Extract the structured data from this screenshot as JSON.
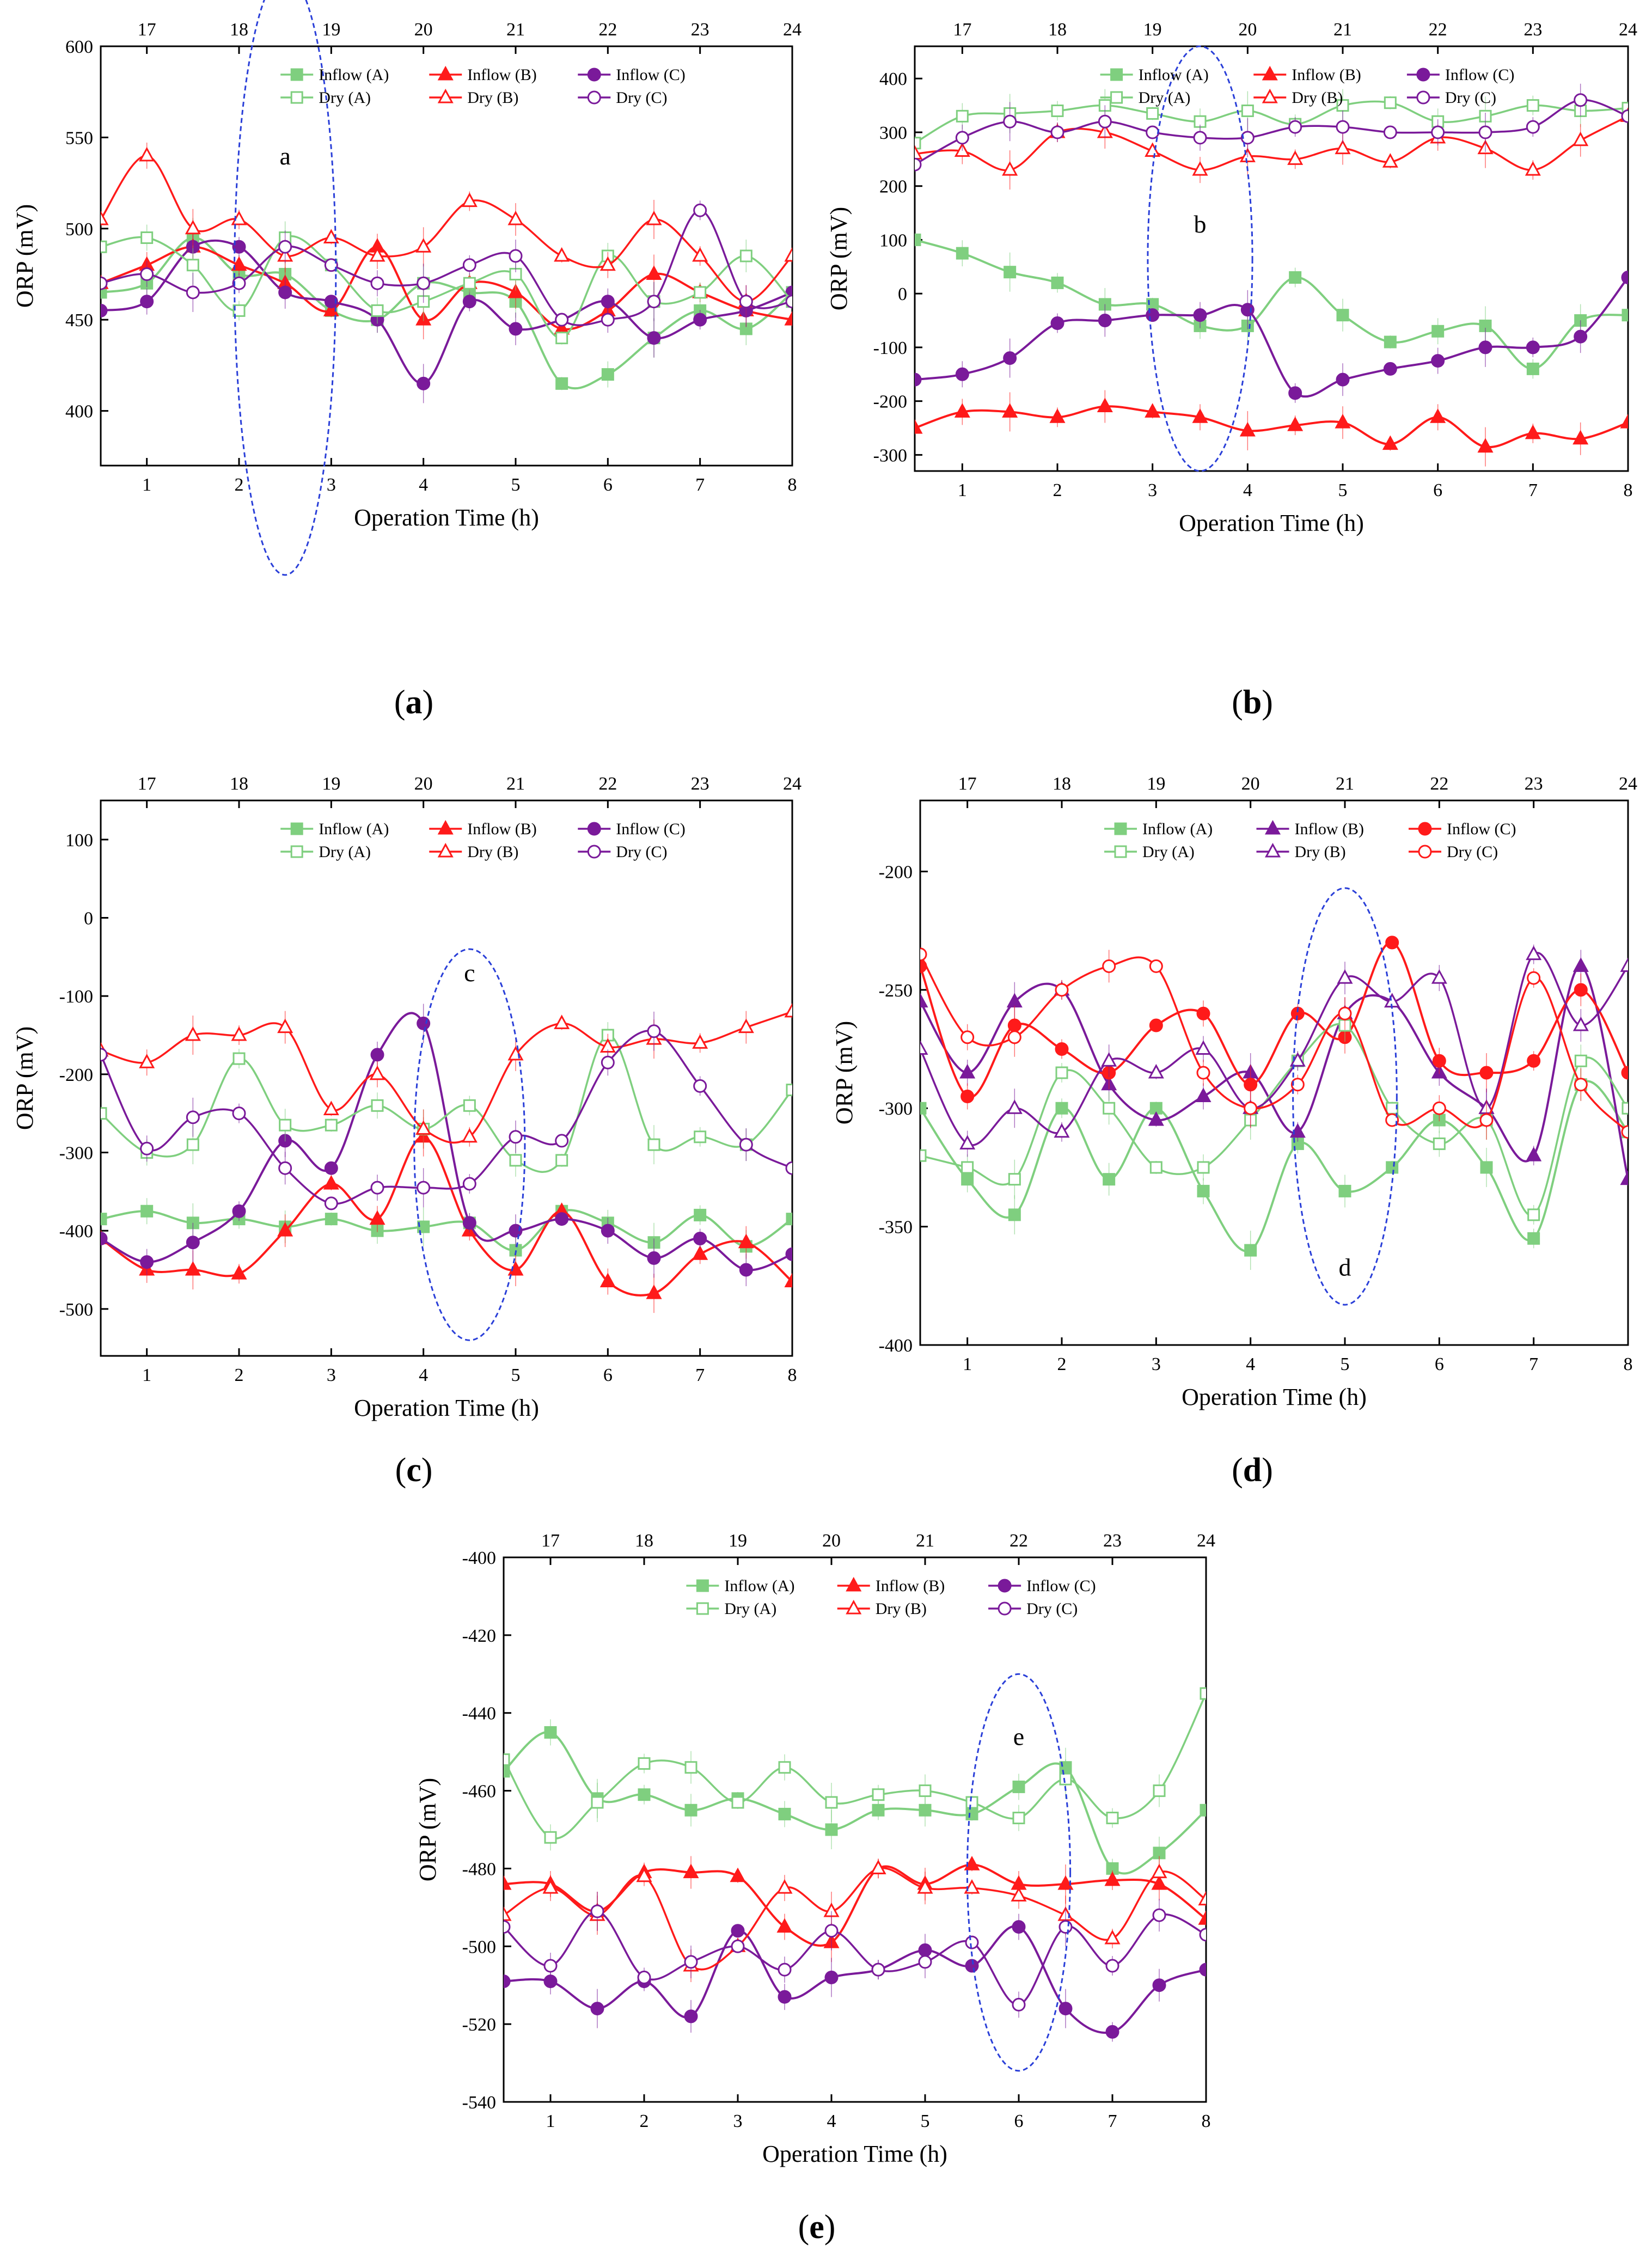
{
  "figure": {
    "axis_x_label": "Operation Time (h)",
    "axis_y_label": "ORP (mV)"
  },
  "chart_data": [
    {
      "id": "a",
      "type": "line",
      "caption": "a",
      "annotation": "a",
      "xlim": [
        0.5,
        8
      ],
      "ylim": [
        370,
        600
      ],
      "x_ticks": [
        1,
        2,
        3,
        4,
        5,
        6,
        7,
        8
      ],
      "y_ticks": [
        400,
        450,
        500,
        550,
        600
      ],
      "top_ticks": [
        17,
        18,
        19,
        20,
        21,
        22,
        23,
        24
      ],
      "xlabel": "Operation Time (h)",
      "ylabel": "ORP (mV)",
      "legend": [
        "Inflow (A)",
        "Inflow (B)",
        "Inflow (C)",
        "Dry (A)",
        "Dry (B)",
        "Dry (C)"
      ],
      "x": [
        0.5,
        1,
        1.5,
        2,
        2.5,
        3,
        3.5,
        4,
        4.5,
        5,
        5.5,
        6,
        6.5,
        7,
        7.5,
        8
      ],
      "series": [
        {
          "name": "Inflow (A)",
          "color": "#7fcf7f",
          "marker": "square",
          "filled": true,
          "values": [
            465,
            470,
            495,
            475,
            475,
            455,
            450,
            470,
            465,
            460,
            415,
            420,
            440,
            455,
            445,
            465
          ]
        },
        {
          "name": "Inflow (B)",
          "color": "#ff1a1a",
          "marker": "triangle",
          "filled": true,
          "values": [
            470,
            480,
            490,
            480,
            470,
            455,
            490,
            450,
            470,
            465,
            445,
            455,
            475,
            465,
            455,
            450
          ]
        },
        {
          "name": "Inflow (C)",
          "color": "#7a1a9a",
          "marker": "circle",
          "filled": true,
          "values": [
            455,
            460,
            490,
            490,
            465,
            460,
            450,
            415,
            460,
            445,
            450,
            460,
            440,
            450,
            455,
            465
          ]
        },
        {
          "name": "Dry (A)",
          "color": "#7fcf7f",
          "marker": "square",
          "filled": false,
          "values": [
            490,
            495,
            480,
            455,
            495,
            480,
            455,
            460,
            470,
            475,
            440,
            485,
            460,
            465,
            485,
            460
          ]
        },
        {
          "name": "Dry (B)",
          "color": "#ff1a1a",
          "marker": "triangle",
          "filled": false,
          "values": [
            505,
            540,
            500,
            505,
            485,
            495,
            485,
            490,
            515,
            505,
            485,
            480,
            505,
            485,
            460,
            485
          ]
        },
        {
          "name": "Dry (C)",
          "color": "#7a1a9a",
          "marker": "circle",
          "filled": false,
          "values": [
            470,
            475,
            465,
            470,
            490,
            480,
            470,
            470,
            480,
            485,
            450,
            450,
            460,
            510,
            460,
            460
          ]
        }
      ]
    },
    {
      "id": "b",
      "type": "line",
      "caption": "b",
      "annotation": "b",
      "xlim": [
        0.5,
        8
      ],
      "ylim": [
        -330,
        460
      ],
      "x_ticks": [
        1,
        2,
        3,
        4,
        5,
        6,
        7,
        8
      ],
      "y_ticks": [
        -300,
        -200,
        -100,
        0,
        100,
        200,
        300,
        400
      ],
      "top_ticks": [
        17,
        18,
        19,
        20,
        21,
        22,
        23,
        24
      ],
      "xlabel": "Operation Time (h)",
      "ylabel": "ORP (mV)",
      "legend": [
        "Inflow (A)",
        "Inflow (B)",
        "Inflow (C)",
        "Dry (A)",
        "Dry (B)",
        "Dry (C)"
      ],
      "x": [
        0.5,
        1,
        1.5,
        2,
        2.5,
        3,
        3.5,
        4,
        4.5,
        5,
        5.5,
        6,
        6.5,
        7,
        7.5,
        8
      ],
      "series": [
        {
          "name": "Inflow (A)",
          "color": "#7fcf7f",
          "marker": "square",
          "filled": true,
          "values": [
            100,
            75,
            40,
            20,
            -20,
            -20,
            -60,
            -60,
            30,
            -40,
            -90,
            -70,
            -60,
            -140,
            -50,
            -40
          ]
        },
        {
          "name": "Inflow (B)",
          "color": "#ff1a1a",
          "marker": "triangle",
          "filled": true,
          "values": [
            -250,
            -220,
            -220,
            -230,
            -210,
            -220,
            -230,
            -255,
            -245,
            -240,
            -280,
            -230,
            -285,
            -260,
            -270,
            -240
          ]
        },
        {
          "name": "Inflow (C)",
          "color": "#7a1a9a",
          "marker": "circle",
          "filled": true,
          "values": [
            -160,
            -150,
            -120,
            -55,
            -50,
            -40,
            -40,
            -30,
            -185,
            -160,
            -140,
            -125,
            -100,
            -100,
            -80,
            30
          ]
        },
        {
          "name": "Dry (A)",
          "color": "#7fcf7f",
          "marker": "square",
          "filled": false,
          "values": [
            280,
            330,
            335,
            340,
            350,
            335,
            320,
            340,
            315,
            350,
            355,
            320,
            330,
            350,
            340,
            345
          ]
        },
        {
          "name": "Dry (B)",
          "color": "#ff1a1a",
          "marker": "triangle",
          "filled": false,
          "values": [
            260,
            265,
            230,
            300,
            300,
            265,
            230,
            255,
            250,
            270,
            245,
            290,
            270,
            230,
            285,
            330
          ]
        },
        {
          "name": "Dry (C)",
          "color": "#7a1a9a",
          "marker": "circle",
          "filled": false,
          "values": [
            240,
            290,
            320,
            300,
            320,
            300,
            290,
            290,
            310,
            310,
            300,
            300,
            300,
            310,
            360,
            330
          ]
        }
      ]
    },
    {
      "id": "c",
      "type": "line",
      "caption": "c",
      "annotation": "c",
      "xlim": [
        0.5,
        8
      ],
      "ylim": [
        -560,
        150
      ],
      "x_ticks": [
        1,
        2,
        3,
        4,
        5,
        6,
        7,
        8
      ],
      "y_ticks": [
        -500,
        -400,
        -300,
        -200,
        -100,
        0,
        100
      ],
      "top_ticks": [
        17,
        18,
        19,
        20,
        21,
        22,
        23,
        24
      ],
      "xlabel": "Operation Time (h)",
      "ylabel": "ORP (mV)",
      "legend": [
        "Inflow (A)",
        "Inflow (B)",
        "Inflow (C)",
        "Dry (A)",
        "Dry (B)",
        "Dry (C)"
      ],
      "x": [
        0.5,
        1,
        1.5,
        2,
        2.5,
        3,
        3.5,
        4,
        4.5,
        5,
        5.5,
        6,
        6.5,
        7,
        7.5,
        8
      ],
      "series": [
        {
          "name": "Inflow (A)",
          "color": "#7fcf7f",
          "marker": "square",
          "filled": true,
          "values": [
            -385,
            -375,
            -390,
            -385,
            -395,
            -385,
            -400,
            -395,
            -390,
            -425,
            -375,
            -390,
            -415,
            -380,
            -420,
            -385
          ]
        },
        {
          "name": "Inflow (B)",
          "color": "#ff1a1a",
          "marker": "triangle",
          "filled": true,
          "values": [
            -410,
            -450,
            -450,
            -455,
            -400,
            -340,
            -385,
            -280,
            -400,
            -450,
            -375,
            -465,
            -480,
            -430,
            -415,
            -465
          ]
        },
        {
          "name": "Inflow (C)",
          "color": "#7a1a9a",
          "marker": "circle",
          "filled": true,
          "values": [
            -410,
            -440,
            -415,
            -375,
            -285,
            -320,
            -175,
            -135,
            -390,
            -400,
            -385,
            -400,
            -435,
            -410,
            -450,
            -430
          ]
        },
        {
          "name": "Dry (A)",
          "color": "#7fcf7f",
          "marker": "square",
          "filled": false,
          "values": [
            -250,
            -300,
            -290,
            -180,
            -265,
            -265,
            -240,
            -270,
            -240,
            -310,
            -310,
            -150,
            -290,
            -280,
            -290,
            -220
          ]
        },
        {
          "name": "Dry (B)",
          "color": "#ff1a1a",
          "marker": "triangle",
          "filled": false,
          "values": [
            -170,
            -185,
            -150,
            -150,
            -140,
            -245,
            -200,
            -270,
            -280,
            -175,
            -135,
            -165,
            -155,
            -160,
            -140,
            -120
          ]
        },
        {
          "name": "Dry (C)",
          "color": "#7a1a9a",
          "marker": "circle",
          "filled": false,
          "values": [
            -175,
            -295,
            -255,
            -250,
            -320,
            -365,
            -345,
            -345,
            -340,
            -280,
            -285,
            -185,
            -145,
            -215,
            -290,
            -320
          ]
        }
      ]
    },
    {
      "id": "d",
      "type": "line",
      "caption": "d",
      "annotation": "d",
      "xlim": [
        0.5,
        8
      ],
      "ylim": [
        -400,
        -170
      ],
      "x_ticks": [
        1,
        2,
        3,
        4,
        5,
        6,
        7,
        8
      ],
      "y_ticks": [
        -400,
        -350,
        -300,
        -250,
        -200
      ],
      "top_ticks": [
        17,
        18,
        19,
        20,
        21,
        22,
        23,
        24
      ],
      "xlabel": "Operation Time (h)",
      "ylabel": "ORP (mV)",
      "legend": [
        "Inflow (A)",
        "Inflow (B)",
        "Inflow (C)",
        "Dry (A)",
        "Dry (B)",
        "Dry (C)"
      ],
      "x": [
        0.5,
        1,
        1.5,
        2,
        2.5,
        3,
        3.5,
        4,
        4.5,
        5,
        5.5,
        6,
        6.5,
        7,
        7.5,
        8
      ],
      "series": [
        {
          "name": "Inflow (A)",
          "color": "#7fcf7f",
          "marker": "square",
          "filled": true,
          "values": [
            -300,
            -330,
            -345,
            -300,
            -330,
            -300,
            -335,
            -360,
            -315,
            -335,
            -325,
            -305,
            -325,
            -355,
            -290,
            -310
          ]
        },
        {
          "name": "Inflow (B)",
          "color": "#7a1a9a",
          "marker": "triangle",
          "filled": true,
          "values": [
            -255,
            -285,
            -255,
            -250,
            -290,
            -305,
            -295,
            -285,
            -310,
            -260,
            -255,
            -285,
            -300,
            -320,
            -240,
            -330
          ]
        },
        {
          "name": "Inflow (C)",
          "color": "#ff1a1a",
          "marker": "circle",
          "filled": true,
          "values": [
            -240,
            -295,
            -265,
            -275,
            -285,
            -265,
            -260,
            -290,
            -260,
            -270,
            -230,
            -280,
            -285,
            -280,
            -250,
            -285
          ]
        },
        {
          "name": "Dry (A)",
          "color": "#7fcf7f",
          "marker": "square",
          "filled": false,
          "values": [
            -320,
            -325,
            -330,
            -285,
            -300,
            -325,
            -325,
            -305,
            -280,
            -265,
            -300,
            -315,
            -305,
            -345,
            -280,
            -300
          ]
        },
        {
          "name": "Dry (B)",
          "color": "#7a1a9a",
          "marker": "triangle",
          "filled": false,
          "values": [
            -275,
            -315,
            -300,
            -310,
            -280,
            -285,
            -275,
            -300,
            -280,
            -245,
            -255,
            -245,
            -300,
            -235,
            -265,
            -240
          ]
        },
        {
          "name": "Dry (C)",
          "color": "#ff1a1a",
          "marker": "circle",
          "filled": false,
          "values": [
            -235,
            -270,
            -270,
            -250,
            -240,
            -240,
            -285,
            -300,
            -290,
            -260,
            -305,
            -300,
            -305,
            -245,
            -290,
            -310
          ]
        }
      ]
    },
    {
      "id": "e",
      "type": "line",
      "caption": "e",
      "annotation": "e",
      "xlim": [
        0.5,
        8
      ],
      "ylim": [
        -540,
        -400
      ],
      "x_ticks": [
        1,
        2,
        3,
        4,
        5,
        6,
        7,
        8
      ],
      "y_ticks": [
        -540,
        -520,
        -500,
        -480,
        -460,
        -440,
        -420,
        -400
      ],
      "top_ticks": [
        17,
        18,
        19,
        20,
        21,
        22,
        23,
        24
      ],
      "xlabel": "Operation Time (h)",
      "ylabel": "ORP (mV)",
      "legend": [
        "Inflow (A)",
        "Inflow (B)",
        "Inflow (C)",
        "Dry (A)",
        "Dry (B)",
        "Dry (C)"
      ],
      "x": [
        0.5,
        1,
        1.5,
        2,
        2.5,
        3,
        3.5,
        4,
        4.5,
        5,
        5.5,
        6,
        6.5,
        7,
        7.5,
        8
      ],
      "series": [
        {
          "name": "Inflow (A)",
          "color": "#7fcf7f",
          "marker": "square",
          "filled": true,
          "values": [
            -455,
            -445,
            -462,
            -461,
            -465,
            -462,
            -466,
            -470,
            -465,
            -465,
            -466,
            -459,
            -454,
            -480,
            -476,
            -465
          ]
        },
        {
          "name": "Inflow (B)",
          "color": "#ff1a1a",
          "marker": "triangle",
          "filled": true,
          "values": [
            -484,
            -484,
            -491,
            -481,
            -481,
            -482,
            -495,
            -499,
            -480,
            -484,
            -479,
            -484,
            -484,
            -483,
            -484,
            -493
          ]
        },
        {
          "name": "Inflow (C)",
          "color": "#7a1a9a",
          "marker": "circle",
          "filled": true,
          "values": [
            -509,
            -509,
            -516,
            -509,
            -518,
            -496,
            -513,
            -508,
            -506,
            -501,
            -505,
            -495,
            -516,
            -522,
            -510,
            -506
          ]
        },
        {
          "name": "Dry (A)",
          "color": "#7fcf7f",
          "marker": "square",
          "filled": false,
          "values": [
            -452,
            -472,
            -463,
            -453,
            -454,
            -463,
            -454,
            -463,
            -461,
            -460,
            -463,
            -467,
            -457,
            -467,
            -460,
            -435
          ]
        },
        {
          "name": "Dry (B)",
          "color": "#ff1a1a",
          "marker": "triangle",
          "filled": false,
          "values": [
            -492,
            -485,
            -492,
            -482,
            -505,
            -500,
            -485,
            -491,
            -480,
            -485,
            -485,
            -487,
            -492,
            -498,
            -481,
            -488
          ]
        },
        {
          "name": "Dry (C)",
          "color": "#7a1a9a",
          "marker": "circle",
          "filled": false,
          "values": [
            -495,
            -505,
            -491,
            -508,
            -504,
            -500,
            -506,
            -496,
            -506,
            -504,
            -499,
            -515,
            -495,
            -505,
            -492,
            -497
          ]
        }
      ]
    }
  ]
}
